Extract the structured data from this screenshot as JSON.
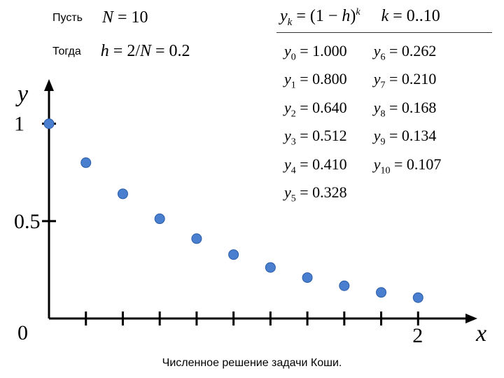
{
  "header": {
    "let_label": "Пусть",
    "then_label": "Тогда",
    "n_eq": "N = 10",
    "h_eq": "h = 2/N = 0.2",
    "formula": "yₖ = (1 − h)ᵏ",
    "k_range": "k = 0..10"
  },
  "values": {
    "left_col": [
      {
        "sub": "0",
        "val": "1.000"
      },
      {
        "sub": "1",
        "val": "0.800"
      },
      {
        "sub": "2",
        "val": "0.640"
      },
      {
        "sub": "3",
        "val": "0.512"
      },
      {
        "sub": "4",
        "val": "0.410"
      },
      {
        "sub": "5",
        "val": "0.328"
      }
    ],
    "right_col": [
      {
        "sub": "6",
        "val": "0.262"
      },
      {
        "sub": "7",
        "val": "0.210"
      },
      {
        "sub": "8",
        "val": "0.168"
      },
      {
        "sub": "9",
        "val": "0.134"
      },
      {
        "sub": "10",
        "val": "0.107"
      }
    ]
  },
  "chart": {
    "type": "scatter",
    "y_axis_label": "y",
    "x_axis_label": "x",
    "y_ticks": [
      {
        "v": 1.0,
        "label": "1"
      },
      {
        "v": 0.5,
        "label": "0.5"
      }
    ],
    "x_ticks_minor": [
      0.2,
      0.4,
      0.6,
      0.8,
      1.0,
      1.2,
      1.4,
      1.6,
      1.8,
      2.0
    ],
    "x_tick_label": {
      "v": 2.0,
      "label": "2"
    },
    "origin_label": "0",
    "xlim": [
      0,
      2.2
    ],
    "ylim": [
      0,
      1.15
    ],
    "points": [
      {
        "x": 0.0,
        "y": 1.0
      },
      {
        "x": 0.2,
        "y": 0.8
      },
      {
        "x": 0.4,
        "y": 0.64
      },
      {
        "x": 0.6,
        "y": 0.512
      },
      {
        "x": 0.8,
        "y": 0.41
      },
      {
        "x": 1.0,
        "y": 0.328
      },
      {
        "x": 1.2,
        "y": 0.262
      },
      {
        "x": 1.4,
        "y": 0.21
      },
      {
        "x": 1.6,
        "y": 0.168
      },
      {
        "x": 1.8,
        "y": 0.134
      },
      {
        "x": 2.0,
        "y": 0.107
      }
    ],
    "style": {
      "marker_radius": 7,
      "marker_fill": "#4a7fd0",
      "marker_stroke": "#2a5da8",
      "axis_color": "#000000",
      "axis_width": 3,
      "tick_len": 10,
      "label_fontsize": 30,
      "axis_label_fontsize": 34,
      "background": "#ffffff"
    }
  },
  "caption": "Численное решение задачи Коши."
}
